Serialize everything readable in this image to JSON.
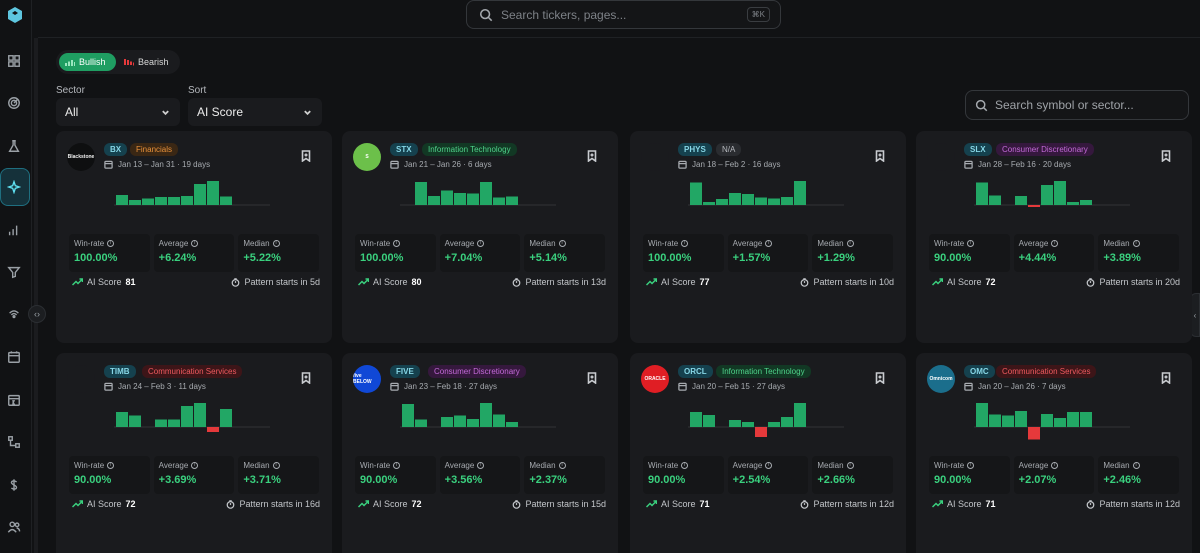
{
  "topbar": {
    "search_placeholder": "Search tickers, pages...",
    "shortcut": "⌘K"
  },
  "toggle": {
    "bullish": "Bullish",
    "bearish": "Bearish",
    "active": "Bullish"
  },
  "filters": {
    "sector_label": "Sector",
    "sector_value": "All",
    "sort_label": "Sort",
    "sort_value": "AI Score",
    "search_placeholder": "Search symbol or sector..."
  },
  "sidebar": {
    "icons": [
      "dashboard-icon",
      "radar-icon",
      "flask-icon",
      "sparkle-icon",
      "bar-chart-icon",
      "filter-icon",
      "signal-icon",
      "calendar-icon",
      "calendar-31-icon",
      "workflow-icon",
      "dollar-icon",
      "users-icon"
    ],
    "active": "sparkle-icon"
  },
  "labels": {
    "win_rate": "Win-rate",
    "average": "Average",
    "median": "Median",
    "ai_score": "AI Score",
    "pattern_prefix": "Pattern starts in"
  },
  "colors": {
    "positive": "#3ad07e",
    "bar_up": "#22a765",
    "bar_down": "#e5393b",
    "accent": "#1f9e62"
  },
  "cards": [
    {
      "ticker": "BX",
      "sector": "Financials",
      "sector_color": "#e8913a",
      "sector_bg": "#3a2714",
      "logo_text": "Blackstone",
      "logo_bg": "#0e0f10",
      "logo_color": "#f0f0f0",
      "dates": "Jan 13 – Jan 31 · 19 days",
      "bars": [
        2,
        1,
        1.3,
        1.6,
        1.6,
        1.8,
        4.2,
        4.8,
        1.7
      ],
      "win_rate": "100.00%",
      "average": "+6.24%",
      "median": "+5.22%",
      "ai_score": "81",
      "pattern_start": "Pattern starts in 5d"
    },
    {
      "ticker": "STX",
      "sector": "Information Technology",
      "sector_color": "#4fd38a",
      "sector_bg": "#123824",
      "logo_text": "S",
      "logo_bg": "#6cc04a",
      "logo_color": "#ffffff",
      "dates": "Jan 21 – Jan 26 · 6 days",
      "bars": [
        0,
        4.6,
        1.8,
        2.9,
        2.4,
        2.3,
        4.6,
        1.5,
        1.7
      ],
      "win_rate": "100.00%",
      "average": "+7.04%",
      "median": "+5.14%",
      "ai_score": "80",
      "pattern_start": "Pattern starts in 13d"
    },
    {
      "ticker": "PHYS",
      "sector": "N/A",
      "sector_color": "#b5b8bd",
      "sector_bg": "#2a2c30",
      "logo_text": "",
      "logo_bg": "#1a1b1e",
      "logo_color": "#ffffff",
      "dates": "Jan 18 – Feb 2 · 16 days",
      "bars": [
        4.5,
        0.6,
        1.2,
        2.4,
        2.2,
        1.5,
        1.3,
        1.6,
        4.8
      ],
      "win_rate": "100.00%",
      "average": "+1.57%",
      "median": "+1.29%",
      "ai_score": "77",
      "pattern_start": "Pattern starts in 10d"
    },
    {
      "ticker": "SLX",
      "sector": "Consumer Discretionary",
      "sector_color": "#c46ad9",
      "sector_bg": "#35183d",
      "logo_text": "",
      "logo_bg": "#1a1b1e",
      "logo_color": "#ffffff",
      "dates": "Jan 28 – Feb 16 · 20 days",
      "bars": [
        4.5,
        1.9,
        0,
        1.8,
        -0.4,
        4.0,
        4.8,
        0.6,
        1.0
      ],
      "win_rate": "90.00%",
      "average": "+4.44%",
      "median": "+3.89%",
      "ai_score": "72",
      "pattern_start": "Pattern starts in 20d"
    },
    {
      "ticker": "TIMB",
      "sector": "Communication Services",
      "sector_color": "#ef5a5f",
      "sector_bg": "#3d1518",
      "logo_text": "",
      "logo_bg": "#1a1b1e",
      "logo_color": "#ffffff",
      "dates": "Jan 24 – Feb 3 · 11 days",
      "bars": [
        3.0,
        2.3,
        0,
        1.5,
        1.5,
        4.2,
        4.8,
        -1.0,
        3.6
      ],
      "win_rate": "90.00%",
      "average": "+3.69%",
      "median": "+3.71%",
      "ai_score": "72",
      "pattern_start": "Pattern starts in 16d"
    },
    {
      "ticker": "FIVE",
      "sector": "Consumer Discretionary",
      "sector_color": "#c46ad9",
      "sector_bg": "#35183d",
      "logo_text": "five BELOW",
      "logo_bg": "#1048d6",
      "logo_color": "#ffffff",
      "dates": "Jan 23 – Feb 18 · 27 days",
      "bars": [
        4.6,
        1.5,
        0,
        2.0,
        2.3,
        1.6,
        4.8,
        2.5,
        1.0
      ],
      "win_rate": "90.00%",
      "average": "+3.56%",
      "median": "+2.37%",
      "ai_score": "72",
      "pattern_start": "Pattern starts in 15d"
    },
    {
      "ticker": "ORCL",
      "sector": "Information Technology",
      "sector_color": "#4fd38a",
      "sector_bg": "#123824",
      "logo_text": "ORACLE",
      "logo_bg": "#e01e24",
      "logo_color": "#ffffff",
      "dates": "Jan 20 – Feb 15 · 27 days",
      "bars": [
        3.0,
        2.4,
        0,
        1.4,
        1.0,
        -2.0,
        1.0,
        2.0,
        4.8
      ],
      "win_rate": "90.00%",
      "average": "+2.54%",
      "median": "+2.66%",
      "ai_score": "71",
      "pattern_start": "Pattern starts in 12d"
    },
    {
      "ticker": "OMC",
      "sector": "Communication Services",
      "sector_color": "#ef5a5f",
      "sector_bg": "#3d1518",
      "logo_text": "Omnicom",
      "logo_bg": "#1b6e8c",
      "logo_color": "#ffffff",
      "dates": "Jan 20 – Jan 26 · 7 days",
      "bars": [
        4.8,
        2.5,
        2.3,
        3.2,
        -2.5,
        2.6,
        1.8,
        3.0,
        3.0
      ],
      "win_rate": "90.00%",
      "average": "+2.07%",
      "median": "+2.46%",
      "ai_score": "71",
      "pattern_start": "Pattern starts in 12d"
    }
  ]
}
